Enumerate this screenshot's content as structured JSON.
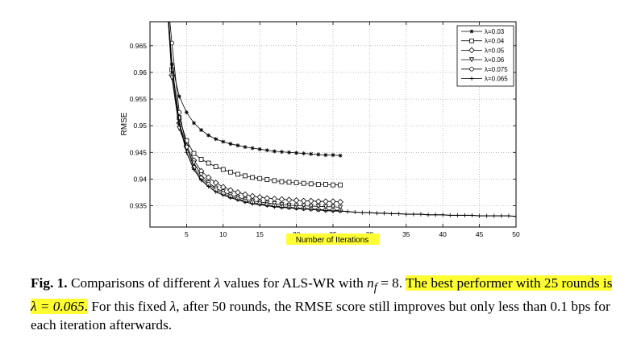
{
  "chart_data": {
    "type": "line",
    "xlabel": "Number of Iterations",
    "ylabel": "RMSE",
    "xlim": [
      0,
      50
    ],
    "ylim": [
      0.931,
      0.9695
    ],
    "xticks": [
      5,
      10,
      15,
      20,
      25,
      30,
      35,
      40,
      45,
      50
    ],
    "xtick_labels": [
      "5",
      "10",
      "15",
      "20",
      "25",
      "30",
      "35",
      "40",
      "45",
      "50"
    ],
    "yticks": [
      0.935,
      0.94,
      0.945,
      0.95,
      0.955,
      0.96,
      0.965
    ],
    "ytick_labels": [
      "0.935",
      "0.94",
      "0.945",
      "0.95",
      "0.955",
      "0.96",
      "0.965"
    ],
    "grid": true,
    "legend_position": "top-right",
    "series": [
      {
        "name": "λ=0.03",
        "marker": "star",
        "color": "#000000",
        "x": [
          2,
          3,
          4,
          5,
          6,
          7,
          8,
          9,
          10,
          11,
          12,
          13,
          14,
          15,
          16,
          17,
          18,
          19,
          20,
          21,
          22,
          23,
          24,
          25,
          26
        ],
        "y": [
          0.98,
          0.9615,
          0.9555,
          0.9525,
          0.9505,
          0.9492,
          0.9482,
          0.9475,
          0.947,
          0.9466,
          0.9463,
          0.946,
          0.9458,
          0.9456,
          0.9454,
          0.9452,
          0.9451,
          0.945,
          0.9449,
          0.9448,
          0.9447,
          0.9446,
          0.9445,
          0.9445,
          0.9444
        ]
      },
      {
        "name": "λ=0.04",
        "marker": "square",
        "color": "#000000",
        "x": [
          2,
          3,
          4,
          5,
          6,
          7,
          8,
          9,
          10,
          11,
          12,
          13,
          14,
          15,
          16,
          17,
          18,
          19,
          20,
          21,
          22,
          23,
          24,
          25,
          26
        ],
        "y": [
          0.98,
          0.9605,
          0.9515,
          0.9472,
          0.9448,
          0.9437,
          0.943,
          0.9423,
          0.9418,
          0.9413,
          0.9409,
          0.9406,
          0.9403,
          0.9401,
          0.9399,
          0.9397,
          0.9395,
          0.9394,
          0.9393,
          0.9392,
          0.9391,
          0.939,
          0.939,
          0.9389,
          0.9389
        ]
      },
      {
        "name": "λ=0.05",
        "marker": "diamond",
        "color": "#000000",
        "x": [
          2,
          3,
          4,
          5,
          6,
          7,
          8,
          9,
          10,
          11,
          12,
          13,
          14,
          15,
          16,
          17,
          18,
          19,
          20,
          21,
          22,
          23,
          24,
          25,
          26
        ],
        "y": [
          0.98,
          0.9595,
          0.9505,
          0.9462,
          0.9435,
          0.9415,
          0.9403,
          0.9393,
          0.9385,
          0.9379,
          0.9375,
          0.9371,
          0.9368,
          0.9366,
          0.9364,
          0.9363,
          0.9362,
          0.9361,
          0.936,
          0.9359,
          0.9359,
          0.9358,
          0.9358,
          0.9358,
          0.9357
        ]
      },
      {
        "name": "λ=0.06",
        "marker": "triangle-down",
        "color": "#000000",
        "x": [
          2,
          3,
          4,
          5,
          6,
          7,
          8,
          9,
          10,
          11,
          12,
          13,
          14,
          15,
          16,
          17,
          18,
          19,
          20,
          21,
          22,
          23,
          24,
          25,
          26
        ],
        "y": [
          0.98,
          0.959,
          0.9495,
          0.9458,
          0.943,
          0.9408,
          0.9393,
          0.9383,
          0.9376,
          0.937,
          0.9366,
          0.9362,
          0.9359,
          0.9357,
          0.9355,
          0.9354,
          0.9352,
          0.9351,
          0.935,
          0.935,
          0.9349,
          0.9349,
          0.9348,
          0.9348,
          0.9347
        ]
      },
      {
        "name": "λ=0.075",
        "marker": "circle",
        "color": "#000000",
        "x": [
          2,
          3,
          4,
          5,
          6,
          7,
          8,
          9,
          10,
          11,
          12,
          13,
          14,
          15,
          16,
          17,
          18,
          19,
          20,
          21,
          22,
          23,
          24,
          25,
          26
        ],
        "y": [
          0.98,
          0.9655,
          0.9525,
          0.946,
          0.9422,
          0.9402,
          0.939,
          0.938,
          0.9373,
          0.9367,
          0.9363,
          0.9359,
          0.9356,
          0.9354,
          0.9352,
          0.935,
          0.9348,
          0.9347,
          0.9346,
          0.9345,
          0.9344,
          0.9343,
          0.9342,
          0.9342,
          0.9341
        ]
      },
      {
        "name": "λ=0.065",
        "marker": "plus",
        "color": "#000000",
        "x": [
          2,
          3,
          4,
          5,
          6,
          7,
          8,
          9,
          10,
          11,
          12,
          13,
          14,
          15,
          16,
          17,
          18,
          19,
          20,
          21,
          22,
          23,
          24,
          25,
          26,
          27,
          28,
          29,
          30,
          31,
          32,
          33,
          34,
          35,
          36,
          37,
          38,
          39,
          40,
          41,
          42,
          43,
          44,
          45,
          46,
          47,
          48,
          49,
          50
        ],
        "y": [
          0.98,
          0.9615,
          0.9505,
          0.945,
          0.9418,
          0.9398,
          0.9386,
          0.9376,
          0.937,
          0.9365,
          0.9361,
          0.9357,
          0.9354,
          0.9352,
          0.935,
          0.9348,
          0.9347,
          0.9346,
          0.9345,
          0.9344,
          0.9343,
          0.9342,
          0.9341,
          0.934,
          0.934,
          0.9339,
          0.9338,
          0.9337,
          0.9337,
          0.9336,
          0.9336,
          0.9335,
          0.9335,
          0.9334,
          0.9334,
          0.9334,
          0.9333,
          0.9333,
          0.9333,
          0.9332,
          0.9332,
          0.9332,
          0.9332,
          0.9331,
          0.9331,
          0.9331,
          0.9331,
          0.9331,
          0.933
        ]
      }
    ]
  },
  "caption": {
    "fig_label": "Fig. 1.",
    "text_before": "Comparisons of different ",
    "lambda_symbol": "λ",
    "text_mid": " values for ALS-WR with ",
    "nf_var": "n",
    "nf_sub": "f",
    "nf_eq": " = 8.",
    "highlight_text": "The best performer with 25 rounds is ",
    "highlight_math": "λ = 0.065",
    "highlight_end": ".",
    "text_after_1": " For this fixed ",
    "text_after_lambda": "λ",
    "text_after_2": ", after 50 rounds, the RMSE score still improves but only less than 0.1 bps for each iteration afterwards."
  }
}
